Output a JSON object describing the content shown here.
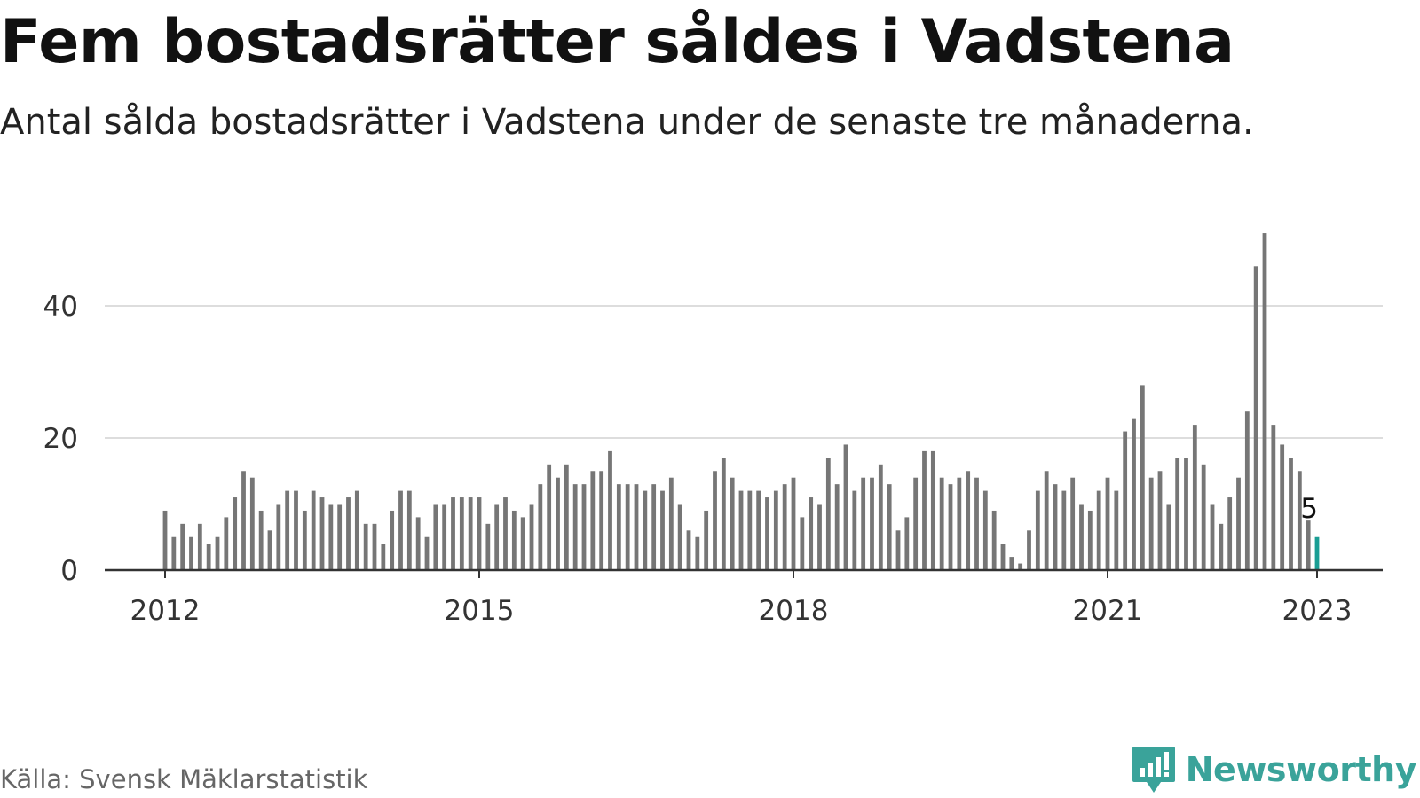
{
  "page": {
    "title": "Fem bostadsrätter såldes i Vadstena",
    "subtitle": "Antal sålda bostadsrätter i Vadstena under de senaste tre månaderna.",
    "source": "Källa: Svensk Mäklarstatistik",
    "brand": "Newsworthy",
    "brand_icon": "newsworthy-logo-icon"
  },
  "colors": {
    "bar": "#767676",
    "highlight": "#1a9e94",
    "grid": "#dddddd",
    "axis": "#333333",
    "brand": "#3aa39a"
  },
  "chart_data": {
    "type": "bar",
    "x_unit": "month",
    "start": "2012-01",
    "ylim": [
      0,
      50.5
    ],
    "yticks": [
      0,
      20,
      40
    ],
    "xticks": [
      "2012",
      "2015",
      "2018",
      "2021",
      "2023"
    ],
    "grid": true,
    "highlight": {
      "label": "5",
      "index_from_end": 1
    },
    "values": [
      9,
      5,
      7,
      5,
      7,
      4,
      5,
      8,
      11,
      15,
      14,
      9,
      6,
      10,
      12,
      12,
      9,
      12,
      11,
      10,
      10,
      11,
      12,
      7,
      7,
      4,
      9,
      12,
      12,
      8,
      5,
      10,
      10,
      11,
      11,
      11,
      11,
      7,
      10,
      11,
      9,
      8,
      10,
      13,
      16,
      14,
      16,
      13,
      13,
      15,
      15,
      18,
      13,
      13,
      13,
      12,
      13,
      12,
      14,
      10,
      6,
      5,
      9,
      15,
      17,
      14,
      12,
      12,
      12,
      11,
      12,
      13,
      14,
      8,
      11,
      10,
      17,
      13,
      19,
      12,
      14,
      14,
      16,
      13,
      6,
      8,
      14,
      18,
      18,
      14,
      13,
      14,
      15,
      14,
      12,
      9,
      4,
      2,
      1,
      6,
      12,
      15,
      13,
      12,
      14,
      10,
      9,
      12,
      14,
      12,
      21,
      23,
      28,
      14,
      15,
      10,
      17,
      17,
      22,
      16,
      10,
      7,
      11,
      14,
      24,
      46,
      51,
      22,
      19,
      17,
      15,
      7.5,
      5
    ]
  }
}
